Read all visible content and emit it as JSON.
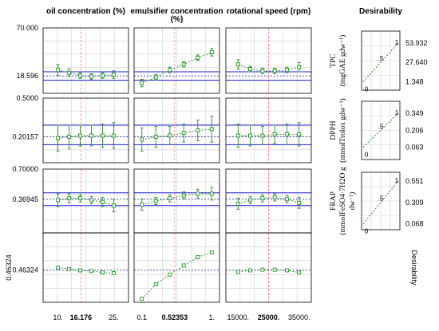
{
  "chart_data": {
    "type": "profiler",
    "columns": [
      {
        "title_lines": [
          "oil concentration (%)"
        ],
        "xmin": 6,
        "xmax": 29,
        "ticks": [
          "10.",
          "16.176",
          "25."
        ],
        "tick_values": [
          10,
          16.176,
          25
        ],
        "current_value": 16.176,
        "x": [
          10,
          13,
          16,
          19,
          22,
          25
        ]
      },
      {
        "title_lines": [
          "emulsifier concentration",
          "(%)"
        ],
        "xmin": 0.0,
        "xmax": 1.1,
        "ticks": [
          "0.1",
          "0.52353",
          "1."
        ],
        "tick_values": [
          0.1,
          0.52353,
          1.0
        ],
        "current_value": 0.52353,
        "x": [
          0.1,
          0.28,
          0.46,
          0.64,
          0.82,
          1.0
        ]
      },
      {
        "title_lines": [
          "rotational speed (rpm)"
        ],
        "xmin": 11000,
        "xmax": 39000,
        "ticks": [
          "15000.",
          "25000.",
          "35000."
        ],
        "tick_values": [
          15000,
          25000,
          35000
        ],
        "current_value": 25000,
        "x": [
          15000,
          19000,
          23000,
          27000,
          31000,
          35000
        ]
      }
    ],
    "desirability_header": "Desirability",
    "rows": [
      {
        "label_lines": [
          "TPC",
          "(mgGAE gdw⁻¹)"
        ],
        "ymin": 0,
        "ymax": 70,
        "tick_labels": [
          "70.000",
          "18.596"
        ],
        "tick_values": [
          70,
          18.596
        ],
        "current": 18.596,
        "ci_low": 14,
        "ci_high": 23,
        "series": [
          {
            "y": [
              25,
              22,
              19,
              18,
              19,
              20
            ],
            "err": [
              6,
              4,
              3,
              3,
              3,
              4
            ]
          },
          {
            "y": [
              11,
              17,
              25,
              31,
              38,
              44
            ],
            "err": [
              4,
              3,
              3,
              3,
              3,
              4
            ]
          },
          {
            "y": [
              31,
              26,
              24,
              24,
              25,
              28
            ],
            "err": [
              5,
              3,
              3,
              3,
              3,
              5
            ]
          }
        ],
        "desirability": {
          "tick_labels": [
            "53.932",
            "27.640",
            "1.348"
          ],
          "tick_values": [
            53.932,
            27.64,
            1.348
          ],
          "ymin": -10,
          "ymax": 70,
          "marks": [
            "0",
            ".5",
            "1"
          ]
        }
      },
      {
        "label_lines": [
          "DPPH",
          "(mmolTrolox gdw⁻¹)"
        ],
        "ymin": 0,
        "ymax": 0.5,
        "tick_labels": [
          "0.5000",
          "0.20157"
        ],
        "tick_values": [
          0.5,
          0.20157
        ],
        "current": 0.20157,
        "ci_low": 0.14,
        "ci_high": 0.29,
        "series": [
          {
            "y": [
              0.19,
              0.2,
              0.21,
              0.21,
              0.21,
              0.21
            ],
            "err": [
              0.1,
              0.09,
              0.08,
              0.08,
              0.09,
              0.1
            ]
          },
          {
            "y": [
              0.18,
              0.2,
              0.21,
              0.23,
              0.25,
              0.26
            ],
            "err": [
              0.09,
              0.08,
              0.07,
              0.07,
              0.08,
              0.1
            ]
          },
          {
            "y": [
              0.21,
              0.21,
              0.21,
              0.22,
              0.22,
              0.22
            ],
            "err": [
              0.09,
              0.08,
              0.07,
              0.07,
              0.08,
              0.09
            ]
          }
        ],
        "desirability": {
          "tick_labels": [
            "0.349",
            "0.206",
            "0.063"
          ],
          "tick_values": [
            0.349,
            0.206,
            0.063
          ],
          "ymin": -0.04,
          "ymax": 0.45,
          "marks": [
            "0",
            ".5",
            "1"
          ]
        }
      },
      {
        "label_lines": [
          "FRAP",
          "(mmolFeSO4·7H2O g",
          "dw⁻¹)"
        ],
        "ymin": 0,
        "ymax": 0.7,
        "tick_labels": [
          "0.70000",
          "0.36945"
        ],
        "tick_values": [
          0.7,
          0.36945
        ],
        "current": 0.36945,
        "ci_low": 0.3,
        "ci_high": 0.44,
        "series": [
          {
            "y": [
              0.36,
              0.38,
              0.38,
              0.36,
              0.34,
              0.3
            ],
            "err": [
              0.07,
              0.05,
              0.04,
              0.04,
              0.05,
              0.07
            ]
          },
          {
            "y": [
              0.31,
              0.35,
              0.38,
              0.41,
              0.43,
              0.43
            ],
            "err": [
              0.06,
              0.04,
              0.04,
              0.04,
              0.05,
              0.07
            ]
          },
          {
            "y": [
              0.32,
              0.36,
              0.38,
              0.39,
              0.37,
              0.33
            ],
            "err": [
              0.06,
              0.04,
              0.04,
              0.04,
              0.04,
              0.06
            ]
          }
        ],
        "desirability": {
          "tick_labels": [
            "0.551",
            "0.309",
            "0.068"
          ],
          "tick_values": [
            0.551,
            0.309,
            0.068
          ],
          "ymin": 0,
          "ymax": 0.65,
          "marks": [
            "0",
            ".5",
            "1"
          ]
        }
      },
      {
        "label_lines": [
          "Desirability"
        ],
        "ymin": 0,
        "ymax": 1,
        "tick_labels": [
          "0.46324"
        ],
        "tick_values": [
          0.46324
        ],
        "current": 0.46324,
        "series": [
          {
            "y": [
              0.5,
              0.48,
              0.46,
              0.45,
              0.43,
              0.42
            ],
            "err": null
          },
          {
            "y": [
              0.05,
              0.26,
              0.4,
              0.53,
              0.65,
              0.72
            ],
            "err": null
          },
          {
            "y": [
              0.44,
              0.46,
              0.47,
              0.47,
              0.46,
              0.43
            ],
            "err": null
          }
        ],
        "desirability": null
      }
    ]
  },
  "colors": {
    "marker": "#1a9a1a",
    "fit": "#2e8b2e",
    "ci": "#1f1fd8",
    "current": "#3333bb",
    "reference": "#ff8080",
    "grid": "#cfcfcf"
  }
}
